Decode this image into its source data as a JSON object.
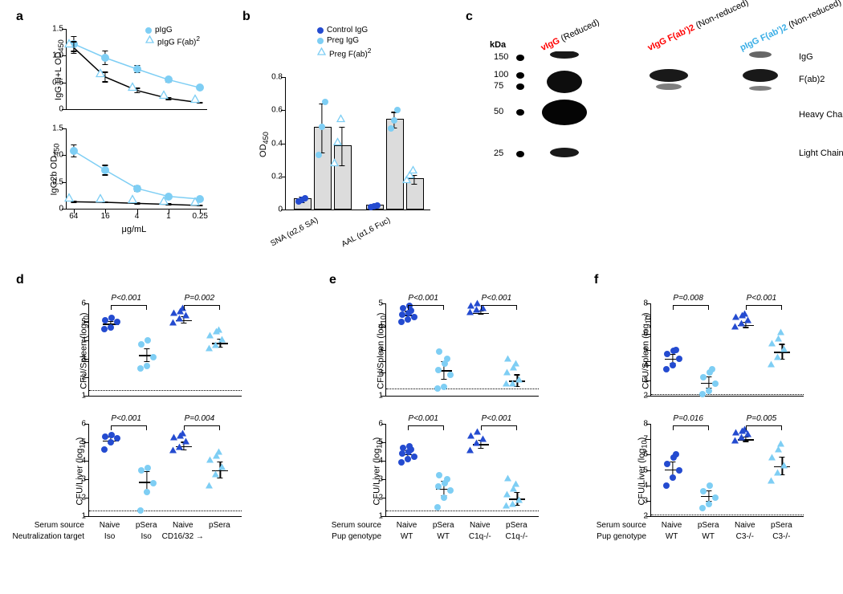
{
  "colors": {
    "light_blue": "#7ecef4",
    "dark_blue": "#244bd0",
    "black": "#000000",
    "red": "#ff0000",
    "text_lightblue": "#3aaee6",
    "grey_bar": "#dcdcdc",
    "white": "#ffffff"
  },
  "labels": {
    "a": "a",
    "b": "b",
    "c": "c",
    "d": "d",
    "e": "e",
    "f": "f"
  },
  "panel_a": {
    "x_title": "μg/mL",
    "x_ticks": [
      "64",
      "16",
      "4",
      "1",
      "0.25"
    ],
    "legend": [
      {
        "label": "pIgG",
        "type": "circle",
        "color_key": "light_blue"
      },
      {
        "label": "pIgG F(ab)",
        "sup": "2",
        "type": "triangle",
        "color_key": "light_blue"
      }
    ],
    "top": {
      "y_title": "IgG H+L OD",
      "y_sub": "450",
      "ylim": [
        0,
        1.5
      ],
      "yticks": [
        0,
        0.5,
        1.0,
        1.5
      ],
      "series": [
        {
          "type": "circle",
          "color_key": "light_blue",
          "fill": true,
          "pts": [
            {
              "x": 0,
              "y": 1.22,
              "err": 0.15
            },
            {
              "x": 1,
              "y": 0.96,
              "err": 0.14
            },
            {
              "x": 2,
              "y": 0.75,
              "err": 0.08
            },
            {
              "x": 3,
              "y": 0.55,
              "err": 0.05
            },
            {
              "x": 4,
              "y": 0.4,
              "err": 0.03
            }
          ]
        },
        {
          "type": "triangle",
          "color_key": "light_blue",
          "fill": false,
          "pts": [
            {
              "x": 0,
              "y": 1.15,
              "err": 0.12
            },
            {
              "x": 1,
              "y": 0.6,
              "err": 0.1
            },
            {
              "x": 2,
              "y": 0.35,
              "err": 0.05
            },
            {
              "x": 3,
              "y": 0.2,
              "err": 0.03
            },
            {
              "x": 4,
              "y": 0.12,
              "err": 0.02
            }
          ],
          "line_color": "black"
        }
      ]
    },
    "bottom": {
      "y_title": "IgG2b OD",
      "y_sub": "450",
      "ylim": [
        0,
        1.5
      ],
      "yticks": [
        0,
        0.5,
        1.0,
        1.5
      ],
      "series": [
        {
          "type": "circle",
          "color_key": "light_blue",
          "fill": true,
          "pts": [
            {
              "x": 0,
              "y": 1.08,
              "err": 0.12
            },
            {
              "x": 1,
              "y": 0.72,
              "err": 0.1
            },
            {
              "x": 2,
              "y": 0.38,
              "err": 0.06
            },
            {
              "x": 3,
              "y": 0.23,
              "err": 0.04
            },
            {
              "x": 4,
              "y": 0.18,
              "err": 0.03
            }
          ]
        },
        {
          "type": "triangle",
          "color_key": "light_blue",
          "fill": false,
          "pts": [
            {
              "x": 0,
              "y": 0.13,
              "err": 0.02
            },
            {
              "x": 1,
              "y": 0.12,
              "err": 0.02
            },
            {
              "x": 2,
              "y": 0.1,
              "err": 0.02
            },
            {
              "x": 3,
              "y": 0.08,
              "err": 0.02
            },
            {
              "x": 4,
              "y": 0.06,
              "err": 0.02
            }
          ],
          "line_color": "black"
        }
      ]
    }
  },
  "panel_b": {
    "y_title": "OD",
    "y_sub": "450",
    "ylim": [
      0,
      0.8
    ],
    "yticks": [
      0,
      0.2,
      0.4,
      0.6,
      0.8
    ],
    "groups": [
      "SNA (α2,6 SA)",
      "AAL (α1,6 Fuc)"
    ],
    "legend": [
      {
        "label": "Control IgG",
        "type": "circle",
        "color_key": "dark_blue"
      },
      {
        "label": "Preg IgG",
        "type": "circle",
        "color_key": "light_blue"
      },
      {
        "label": "Preg F(ab)",
        "sup": "2",
        "type": "triangle",
        "color_key": "light_blue"
      }
    ],
    "bars": [
      {
        "group": 0,
        "sub": 0,
        "mean": 0.06,
        "err": 0.02,
        "pts": [
          0.05,
          0.06,
          0.07
        ],
        "marker": "circle",
        "color_key": "dark_blue"
      },
      {
        "group": 0,
        "sub": 1,
        "mean": 0.49,
        "err": 0.15,
        "pts": [
          0.33,
          0.5,
          0.65
        ],
        "marker": "circle",
        "color_key": "light_blue"
      },
      {
        "group": 0,
        "sub": 2,
        "mean": 0.38,
        "err": 0.12,
        "pts": [
          0.25,
          0.38,
          0.52
        ],
        "marker": "triangle",
        "color_key": "light_blue"
      },
      {
        "group": 1,
        "sub": 0,
        "mean": 0.02,
        "err": 0.01,
        "pts": [
          0.015,
          0.02,
          0.025
        ],
        "marker": "circle",
        "color_key": "dark_blue"
      },
      {
        "group": 1,
        "sub": 1,
        "mean": 0.54,
        "err": 0.05,
        "pts": [
          0.49,
          0.54,
          0.6
        ],
        "marker": "circle",
        "color_key": "light_blue"
      },
      {
        "group": 1,
        "sub": 2,
        "mean": 0.18,
        "err": 0.03,
        "pts": [
          0.15,
          0.18,
          0.21
        ],
        "marker": "triangle",
        "color_key": "light_blue"
      }
    ]
  },
  "panel_c": {
    "kda_label": "kDa",
    "mw": [
      {
        "v": "150",
        "y": 0
      },
      {
        "v": "100",
        "y": 22
      },
      {
        "v": "75",
        "y": 36
      },
      {
        "v": "50",
        "y": 68
      },
      {
        "v": "25",
        "y": 120
      }
    ],
    "lanes": [
      {
        "head": "vIgG",
        "head_color": "red",
        "sub": "(Reduced)",
        "x": 0
      },
      {
        "head": "vIgG F(ab')2",
        "head_color": "red",
        "sub": "(Non-reduced)",
        "x": 1
      },
      {
        "head": "pIgG F(ab')2",
        "head_color": "text_lightblue",
        "sub": "(Non-reduced)",
        "x": 2
      }
    ],
    "right_labels": [
      {
        "t": "IgG",
        "y": 0
      },
      {
        "t": "F(ab)2",
        "y": 28
      },
      {
        "t": "Heavy Chain",
        "y": 72
      },
      {
        "t": "Light Chain",
        "y": 120
      }
    ]
  },
  "panel_d": {
    "row1": "Serum source",
    "row2": "Neutralization target",
    "cats": [
      {
        "l1": "Naive",
        "l2": "Iso"
      },
      {
        "l1": "pSera",
        "l2": "Iso"
      },
      {
        "l1": "Naive",
        "l2": "CD16/32 →"
      },
      {
        "l1": "pSera",
        "l2": ""
      }
    ],
    "top": {
      "y_title": "CFU/Spleen (log",
      "y_sub": "10",
      "y_tail": ")",
      "ylim": [
        1,
        6
      ],
      "yticks": [
        1,
        2,
        3,
        4,
        5,
        6
      ],
      "hline": 1.3,
      "groups": [
        {
          "marker": "circle",
          "color_key": "dark_blue",
          "mean": 4.9,
          "pts": [
            4.6,
            4.7,
            5.0,
            5.1,
            5.2
          ]
        },
        {
          "marker": "circle",
          "color_key": "light_blue",
          "mean": 3.2,
          "pts": [
            2.5,
            2.6,
            3.1,
            3.8,
            4.0
          ]
        },
        {
          "marker": "triangle",
          "color_key": "dark_blue",
          "mean": 5.1,
          "pts": [
            4.7,
            4.9,
            5.1,
            5.2,
            5.3,
            5.5
          ]
        },
        {
          "marker": "triangle",
          "color_key": "light_blue",
          "mean": 3.85,
          "pts": [
            3.3,
            3.5,
            3.8,
            4.0,
            4.2,
            4.3
          ]
        }
      ],
      "pvals": [
        {
          "i": 0,
          "j": 1,
          "t": "P<0.001"
        },
        {
          "i": 2,
          "j": 3,
          "t": "P=0.002"
        }
      ]
    },
    "bottom": {
      "y_title": "CFU/Liver (log",
      "y_sub": "10",
      "y_tail": ")",
      "ylim": [
        1,
        6
      ],
      "yticks": [
        1,
        2,
        3,
        4,
        5,
        6
      ],
      "hline": 1.3,
      "groups": [
        {
          "marker": "circle",
          "color_key": "dark_blue",
          "mean": 5.1,
          "pts": [
            4.6,
            5.0,
            5.2,
            5.3,
            5.4
          ]
        },
        {
          "marker": "circle",
          "color_key": "light_blue",
          "mean": 2.85,
          "pts": [
            1.3,
            2.3,
            2.8,
            3.5,
            3.6
          ]
        },
        {
          "marker": "triangle",
          "color_key": "dark_blue",
          "mean": 4.8,
          "pts": [
            4.3,
            4.5,
            4.8,
            5.0,
            5.1,
            5.2
          ]
        },
        {
          "marker": "triangle",
          "color_key": "light_blue",
          "mean": 3.5,
          "pts": [
            2.4,
            3.0,
            3.4,
            3.8,
            4.0,
            4.2
          ]
        }
      ],
      "pvals": [
        {
          "i": 0,
          "j": 1,
          "t": "P<0.001"
        },
        {
          "i": 2,
          "j": 3,
          "t": "P=0.004"
        }
      ]
    }
  },
  "panel_e": {
    "row1": "Serum source",
    "row2": "Pup genotype",
    "cats": [
      {
        "l1": "Naive",
        "l2": "WT"
      },
      {
        "l1": "pSera",
        "l2": "WT"
      },
      {
        "l1": "Naive",
        "l2": "C1q-/-"
      },
      {
        "l1": "pSera",
        "l2": "C1q-/-"
      }
    ],
    "top": {
      "y_title": "CFU/Spleen (log",
      "y_sub": "10",
      "y_tail": ")",
      "ylim": [
        1,
        5
      ],
      "yticks": [
        1,
        2,
        3,
        4,
        5
      ],
      "hline": 1.3,
      "groups": [
        {
          "marker": "circle",
          "color_key": "dark_blue",
          "mean": 4.5,
          "pts": [
            4.2,
            4.3,
            4.4,
            4.5,
            4.6,
            4.7,
            4.8,
            4.9
          ]
        },
        {
          "marker": "circle",
          "color_key": "light_blue",
          "mean": 2.1,
          "pts": [
            1.3,
            1.4,
            1.9,
            2.1,
            2.4,
            2.6,
            2.9
          ]
        },
        {
          "marker": "triangle",
          "color_key": "dark_blue",
          "mean": 4.6,
          "pts": [
            4.4,
            4.5,
            4.6,
            4.7,
            4.8
          ]
        },
        {
          "marker": "triangle",
          "color_key": "light_blue",
          "mean": 1.65,
          "pts": [
            1.3,
            1.3,
            1.5,
            1.8,
            2.0,
            2.2,
            2.4
          ]
        }
      ],
      "pvals": [
        {
          "i": 0,
          "j": 1,
          "t": "P<0.001"
        },
        {
          "i": 2,
          "j": 3,
          "t": "P<0.001"
        }
      ]
    },
    "bottom": {
      "y_title": "CFU/Liver (log",
      "y_sub": "10",
      "y_tail": ")",
      "ylim": [
        1,
        6
      ],
      "yticks": [
        1,
        2,
        3,
        4,
        5,
        6
      ],
      "hline": 1.3,
      "groups": [
        {
          "marker": "circle",
          "color_key": "dark_blue",
          "mean": 4.35,
          "pts": [
            3.9,
            4.1,
            4.2,
            4.4,
            4.5,
            4.6,
            4.7,
            4.8
          ]
        },
        {
          "marker": "circle",
          "color_key": "light_blue",
          "mean": 2.5,
          "pts": [
            1.5,
            2.0,
            2.4,
            2.6,
            2.8,
            3.0,
            3.2
          ]
        },
        {
          "marker": "triangle",
          "color_key": "dark_blue",
          "mean": 4.9,
          "pts": [
            4.3,
            4.7,
            4.9,
            5.1,
            5.3
          ]
        },
        {
          "marker": "triangle",
          "color_key": "light_blue",
          "mean": 1.95,
          "pts": [
            1.3,
            1.4,
            1.6,
            1.9,
            2.2,
            2.5,
            2.8
          ]
        }
      ],
      "pvals": [
        {
          "i": 0,
          "j": 1,
          "t": "P<0.001"
        },
        {
          "i": 2,
          "j": 3,
          "t": "P<0.001"
        }
      ]
    }
  },
  "panel_f": {
    "row1": "Serum source",
    "row2": "Pup genotype",
    "cats": [
      {
        "l1": "Naive",
        "l2": "WT"
      },
      {
        "l1": "pSera",
        "l2": "WT"
      },
      {
        "l1": "Naive",
        "l2": "C3-/-"
      },
      {
        "l1": "pSera",
        "l2": "C3-/-"
      }
    ],
    "top": {
      "y_title": "CFU/Spleen (log",
      "y_sub": "10",
      "y_tail": ")",
      "ylim": [
        2,
        8
      ],
      "yticks": [
        2,
        3,
        4,
        5,
        6,
        7,
        8
      ],
      "hline": 2.1,
      "groups": [
        {
          "marker": "circle",
          "color_key": "dark_blue",
          "mean": 4.4,
          "pts": [
            3.7,
            4.0,
            4.4,
            4.7,
            4.9,
            5.0
          ]
        },
        {
          "marker": "circle",
          "color_key": "light_blue",
          "mean": 2.85,
          "pts": [
            2.1,
            2.3,
            2.8,
            3.2,
            3.5,
            3.7
          ]
        },
        {
          "marker": "triangle",
          "color_key": "dark_blue",
          "mean": 6.6,
          "pts": [
            6.2,
            6.4,
            6.6,
            6.8,
            6.9,
            7.0
          ]
        },
        {
          "marker": "triangle",
          "color_key": "light_blue",
          "mean": 4.85,
          "pts": [
            3.7,
            4.2,
            4.7,
            5.1,
            5.4,
            5.8
          ]
        }
      ],
      "pvals": [
        {
          "i": 0,
          "j": 1,
          "t": "P=0.008"
        },
        {
          "i": 2,
          "j": 3,
          "t": "P<0.001"
        }
      ]
    },
    "bottom": {
      "y_title": "CFU/Liver (log",
      "y_sub": "10",
      "y_tail": ")",
      "ylim": [
        2,
        8
      ],
      "yticks": [
        2,
        3,
        4,
        5,
        6,
        7,
        8
      ],
      "hline": 2.1,
      "groups": [
        {
          "marker": "circle",
          "color_key": "dark_blue",
          "mean": 5.05,
          "pts": [
            4.0,
            4.5,
            5.0,
            5.4,
            5.8,
            6.0
          ]
        },
        {
          "marker": "circle",
          "color_key": "light_blue",
          "mean": 3.3,
          "pts": [
            2.5,
            2.8,
            3.2,
            3.6,
            4.0
          ]
        },
        {
          "marker": "triangle",
          "color_key": "dark_blue",
          "mean": 7.0,
          "pts": [
            6.6,
            6.8,
            7.0,
            7.1,
            7.2,
            7.3
          ]
        },
        {
          "marker": "triangle",
          "color_key": "light_blue",
          "mean": 5.25,
          "pts": [
            4.0,
            4.5,
            5.0,
            5.5,
            6.0,
            6.4
          ]
        }
      ],
      "pvals": [
        {
          "i": 0,
          "j": 1,
          "t": "P=0.016"
        },
        {
          "i": 2,
          "j": 3,
          "t": "P=0.005"
        }
      ]
    }
  }
}
